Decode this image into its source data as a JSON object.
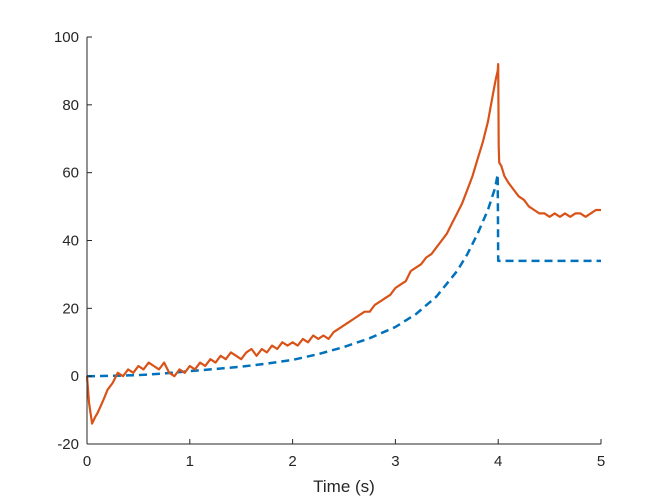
{
  "chart_data": {
    "type": "line",
    "title": "",
    "xlabel": "Time (s)",
    "ylabel": "",
    "xlim": [
      0,
      5
    ],
    "ylim": [
      -20,
      100
    ],
    "grid": false,
    "legend": "none",
    "x_ticks": [
      0,
      1,
      2,
      3,
      4,
      5
    ],
    "y_ticks": [
      -20,
      0,
      20,
      40,
      60,
      80,
      100
    ],
    "x_tick_labels": [
      "0",
      "1",
      "2",
      "3",
      "4",
      "5"
    ],
    "y_tick_labels": [
      "-20",
      "0",
      "20",
      "40",
      "60",
      "80",
      "100"
    ],
    "series": [
      {
        "style": "dashed",
        "color": "#0072BD",
        "x": [
          0,
          0.25,
          0.5,
          0.75,
          1.0,
          1.25,
          1.5,
          1.75,
          2.0,
          2.25,
          2.5,
          2.75,
          3.0,
          3.2,
          3.4,
          3.6,
          3.7,
          3.8,
          3.9,
          3.97,
          3.995,
          4.0,
          4.5,
          5.0
        ],
        "y": [
          0,
          0.1,
          0.3,
          0.8,
          1.5,
          2.1,
          2.8,
          3.7,
          4.8,
          6.5,
          8.6,
          11.2,
          14.5,
          18.3,
          23.5,
          31.0,
          36.0,
          42.0,
          49.0,
          55.5,
          59.5,
          34.0,
          34.0,
          34.0
        ]
      },
      {
        "style": "solid",
        "color": "#D95319",
        "x": [
          0,
          0.02,
          0.05,
          0.08,
          0.1,
          0.13,
          0.16,
          0.2,
          0.25,
          0.3,
          0.35,
          0.4,
          0.45,
          0.5,
          0.55,
          0.6,
          0.65,
          0.7,
          0.75,
          0.8,
          0.85,
          0.9,
          0.95,
          1.0,
          1.05,
          1.1,
          1.15,
          1.2,
          1.25,
          1.3,
          1.35,
          1.4,
          1.45,
          1.5,
          1.55,
          1.6,
          1.65,
          1.7,
          1.75,
          1.8,
          1.85,
          1.9,
          1.95,
          2.0,
          2.05,
          2.1,
          2.15,
          2.2,
          2.25,
          2.3,
          2.35,
          2.4,
          2.45,
          2.5,
          2.55,
          2.6,
          2.65,
          2.7,
          2.75,
          2.8,
          2.85,
          2.9,
          2.95,
          3.0,
          3.05,
          3.1,
          3.15,
          3.2,
          3.25,
          3.3,
          3.35,
          3.4,
          3.45,
          3.5,
          3.55,
          3.6,
          3.65,
          3.7,
          3.75,
          3.8,
          3.85,
          3.9,
          3.93,
          3.96,
          3.98,
          3.995,
          4.0,
          4.005,
          4.01,
          4.03,
          4.06,
          4.1,
          4.15,
          4.2,
          4.25,
          4.3,
          4.35,
          4.4,
          4.45,
          4.5,
          4.55,
          4.6,
          4.65,
          4.7,
          4.75,
          4.8,
          4.85,
          4.9,
          4.95,
          5.0
        ],
        "y": [
          0,
          -8,
          -14,
          -12,
          -11,
          -9,
          -7,
          -4,
          -2,
          1,
          0,
          2,
          1,
          3,
          2,
          4,
          3,
          2,
          4,
          1,
          0,
          2,
          1,
          3,
          2,
          4,
          3,
          5,
          4,
          6,
          5,
          7,
          6,
          5,
          7,
          8,
          6,
          8,
          7,
          9,
          8,
          10,
          9,
          10,
          9,
          11,
          10,
          12,
          11,
          12,
          11,
          13,
          14,
          15,
          16,
          17,
          18,
          19,
          19,
          21,
          22,
          23,
          24,
          26,
          27,
          28,
          31,
          32,
          33,
          35,
          36,
          38,
          40,
          42,
          45,
          48,
          51,
          55,
          59,
          64,
          69,
          75,
          80,
          85,
          88,
          90,
          92,
          68,
          63,
          62,
          59,
          57,
          55,
          53,
          52,
          50,
          49,
          48,
          48,
          47,
          48,
          47,
          48,
          47,
          48,
          48,
          47,
          48,
          49,
          49
        ]
      }
    ]
  }
}
